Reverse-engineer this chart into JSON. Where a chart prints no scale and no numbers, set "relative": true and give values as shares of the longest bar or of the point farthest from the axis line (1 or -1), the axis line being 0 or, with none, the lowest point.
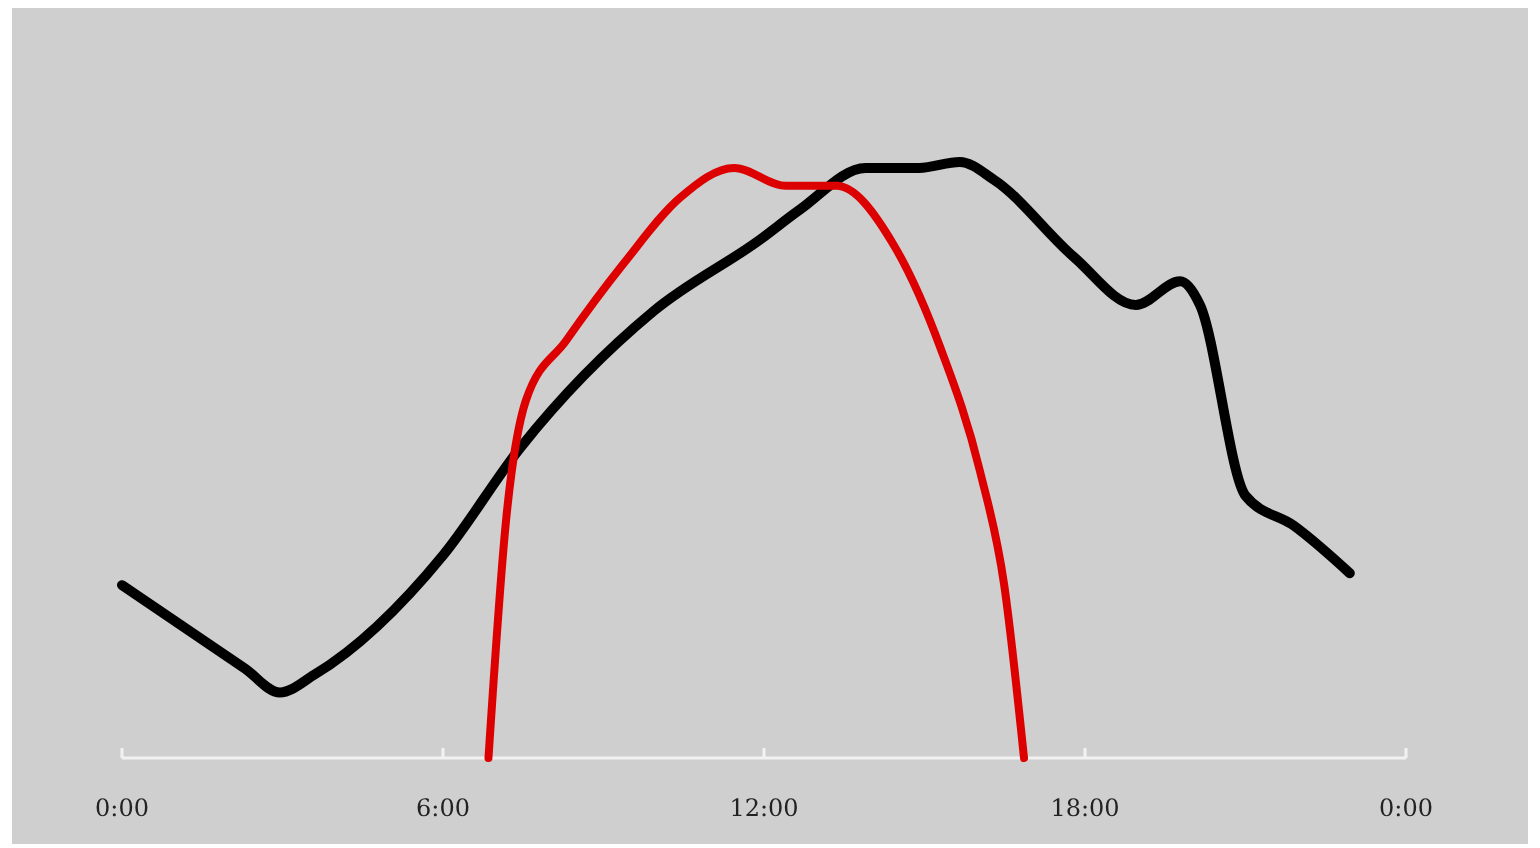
{
  "chart_data": {
    "type": "line",
    "relative": true,
    "xlim": [
      0,
      24
    ],
    "xticks": [
      {
        "value": 0,
        "label": "0:00"
      },
      {
        "value": 6,
        "label": "6:00"
      },
      {
        "value": 12,
        "label": "12:00"
      },
      {
        "value": 18,
        "label": "18:00"
      },
      {
        "value": 24,
        "label": "0:00"
      }
    ],
    "grid": false,
    "marker": "none",
    "line_style": "solid",
    "series": [
      {
        "color": "#000000",
        "x": [
          0,
          2.3,
          2.95,
          3.6,
          6.0,
          7.44,
          9.94,
          11.93,
          12.67,
          13.9,
          14.9,
          15.66,
          16.3,
          17.8,
          18.95,
          19.78,
          20.15,
          21.0,
          21.9,
          22.95
        ],
        "values": [
          0.29,
          0.15,
          0.11,
          0.14,
          0.34,
          0.52,
          0.75,
          0.87,
          0.92,
          0.99,
          0.99,
          1.0,
          0.97,
          0.84,
          0.76,
          0.8,
          0.76,
          0.44,
          0.39,
          0.31
        ]
      },
      {
        "color": "#dd0000",
        "x": [
          6.85,
          7.18,
          7.55,
          8.3,
          9.38,
          10.43,
          11.44,
          12.41,
          13.35,
          14.43,
          15.29,
          16.04,
          16.49,
          16.86
        ],
        "values": [
          0,
          0.4,
          0.6,
          0.7,
          0.83,
          0.94,
          0.99,
          0.96,
          0.96,
          0.86,
          0.69,
          0.48,
          0.29,
          0
        ]
      }
    ]
  }
}
